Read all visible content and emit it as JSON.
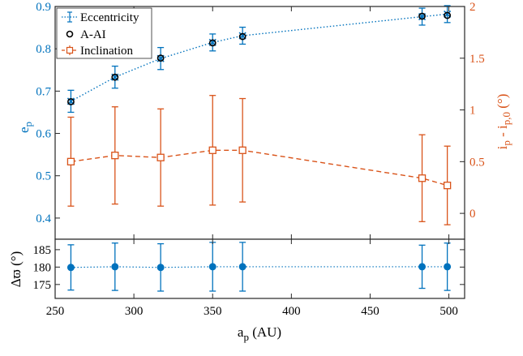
{
  "chart_data": [
    {
      "type": "line",
      "panel": "top",
      "x": [
        260,
        288,
        317,
        350,
        369,
        483,
        499
      ],
      "xlim": [
        250,
        510
      ],
      "left_axis": {
        "label_main": "e",
        "label_sub": "p",
        "ylim": [
          0.35,
          0.9
        ],
        "ticks": [
          "0.9",
          "0.8",
          "0.7",
          "0.6",
          "0.5",
          "0.4"
        ],
        "color": "#0072BD"
      },
      "right_axis": {
        "label_main": "i",
        "label_sub1": "p",
        "label_mid": " - i",
        "label_sub2": "p,0",
        "label_end": " (°)",
        "ylim": [
          -0.25,
          2.0
        ],
        "ticks": [
          "2",
          "1.5",
          "1",
          "0.5",
          "0"
        ],
        "color": "#D95319"
      },
      "series": [
        {
          "name": "Eccentricity",
          "axis": "left",
          "color": "#0072BD",
          "values": [
            0.676,
            0.733,
            0.777,
            0.815,
            0.831,
            0.876,
            0.882
          ],
          "err": [
            0.026,
            0.026,
            0.026,
            0.02,
            0.02,
            0.02,
            0.02
          ]
        },
        {
          "name": "A-AI",
          "axis": "left",
          "color": "#000000",
          "values": [
            0.675,
            0.733,
            0.778,
            0.814,
            0.829,
            0.877,
            0.879
          ]
        },
        {
          "name": "Inclination",
          "axis": "right",
          "color": "#D95319",
          "values": [
            0.5,
            0.56,
            0.54,
            0.61,
            0.61,
            0.34,
            0.27
          ],
          "err": [
            0.43,
            0.47,
            0.47,
            0.53,
            0.5,
            0.42,
            0.38
          ]
        }
      ],
      "legend_position": "top-left",
      "grid": false
    },
    {
      "type": "line",
      "panel": "bottom",
      "x": [
        260,
        288,
        317,
        350,
        369,
        483,
        499
      ],
      "xlim": [
        250,
        510
      ],
      "ylim": [
        171,
        188
      ],
      "ylabel": "Δϖ (°)",
      "yticks": [
        "185",
        "180",
        "175"
      ],
      "xticks": [
        "250",
        "300",
        "350",
        "400",
        "450",
        "500"
      ],
      "xlabel_main": "a",
      "xlabel_sub": "p",
      "xlabel_end": " (AU)",
      "series": [
        {
          "name": "",
          "color": "#0072BD",
          "values": [
            179.9,
            180.1,
            179.9,
            180.1,
            180.1,
            180.1,
            180.1
          ],
          "err": [
            6.5,
            6.8,
            6.8,
            7.0,
            7.0,
            6.2,
            6.8
          ]
        }
      ],
      "grid": false
    }
  ]
}
